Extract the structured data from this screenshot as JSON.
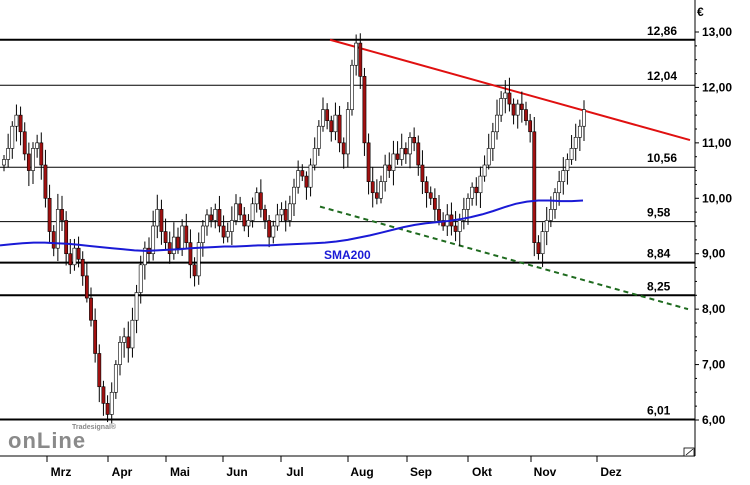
{
  "chart_data": {
    "type": "candlestick",
    "currency": "€",
    "y_range": [
      5.6,
      13.2
    ],
    "yticks": [
      "13,00",
      "12,00",
      "11,00",
      "10,00",
      "9,00",
      "8,00",
      "7,00",
      "6,00"
    ],
    "ytick_values": [
      13,
      12,
      11,
      10,
      9,
      8,
      7,
      6
    ],
    "months": [
      "Mrz",
      "Apr",
      "Mai",
      "Jun",
      "Jul",
      "Aug",
      "Sep",
      "Okt",
      "Nov",
      "Dez"
    ],
    "horizontal_levels": [
      {
        "label": "12,86",
        "value": 12.86
      },
      {
        "label": "12,04",
        "value": 12.04
      },
      {
        "label": "10,56",
        "value": 10.56
      },
      {
        "label": "9,58",
        "value": 9.58
      },
      {
        "label": "8,84",
        "value": 8.84
      },
      {
        "label": "8,25",
        "value": 8.25
      },
      {
        "label": "6,01",
        "value": 6.01
      }
    ],
    "sma_label": "SMA200",
    "logo": {
      "brand": "Tradesignal®",
      "text": "onLine"
    },
    "colors": {
      "up": "#ffffff",
      "down": "#a01010",
      "wick": "#000000",
      "sma": "#1a1ad6",
      "resistance": "#e01010",
      "support": "#1f6b1f",
      "grid": "#000000"
    },
    "prices": [
      10.7,
      10.9,
      11.3,
      11.5,
      11.2,
      10.8,
      10.5,
      10.9,
      11.0,
      10.6,
      10.0,
      9.4,
      9.1,
      9.8,
      9.6,
      9.0,
      8.8,
      9.1,
      8.9,
      8.6,
      8.2,
      7.8,
      7.2,
      6.6,
      6.3,
      6.1,
      6.5,
      7.0,
      7.4,
      7.5,
      7.3,
      7.8,
      8.3,
      8.8,
      9.1,
      9.0,
      9.5,
      9.8,
      9.4,
      9.2,
      9.0,
      9.3,
      9.1,
      9.5,
      9.2,
      8.8,
      8.6,
      9.2,
      9.5,
      9.7,
      9.6,
      9.8,
      9.5,
      9.3,
      9.4,
      9.6,
      9.9,
      9.7,
      9.5,
      9.6,
      9.9,
      10.1,
      9.8,
      9.6,
      9.3,
      9.5,
      9.7,
      9.8,
      9.6,
      9.9,
      10.2,
      10.5,
      10.4,
      10.2,
      10.6,
      10.9,
      11.3,
      11.6,
      11.4,
      11.2,
      11.5,
      11.0,
      10.8,
      11.6,
      12.4,
      12.8,
      12.2,
      11.0,
      10.3,
      10.1,
      10.0,
      10.3,
      10.6,
      10.5,
      10.8,
      10.7,
      10.9,
      10.8,
      11.1,
      11.0,
      10.6,
      10.3,
      10.1,
      10.0,
      9.8,
      9.6,
      9.5,
      9.7,
      9.5,
      9.4,
      9.6,
      9.8,
      10.0,
      10.2,
      10.1,
      10.4,
      10.6,
      10.9,
      11.2,
      11.5,
      11.8,
      11.9,
      11.7,
      11.5,
      11.7,
      11.6,
      11.4,
      11.2,
      9.2,
      9.0,
      9.4,
      9.6,
      9.8,
      10.1,
      10.3,
      10.5,
      10.7,
      10.9,
      11.1,
      11.3,
      11.6
    ],
    "sma200": [
      9.15,
      9.17,
      9.19,
      9.2,
      9.2,
      9.19,
      9.18,
      9.16,
      9.14,
      9.12,
      9.1,
      9.08,
      9.06,
      9.05,
      9.06,
      9.07,
      9.08,
      9.1,
      9.11,
      9.12,
      9.13,
      9.13,
      9.14,
      9.15,
      9.15,
      9.16,
      9.17,
      9.18,
      9.19,
      9.2,
      9.22,
      9.25,
      9.29,
      9.33,
      9.38,
      9.43,
      9.48,
      9.52,
      9.55,
      9.57,
      9.59,
      9.62,
      9.66,
      9.71,
      9.77,
      9.84,
      9.9,
      9.94,
      9.96,
      9.96,
      9.95,
      9.95,
      9.96
    ]
  }
}
